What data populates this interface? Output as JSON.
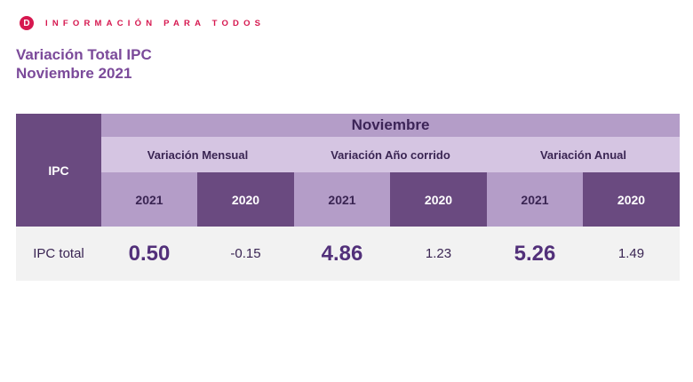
{
  "brand": {
    "logo": "D",
    "text": "INFORMACIÓN PARA TODOS"
  },
  "title": {
    "line1": "Variación Total IPC",
    "line2": "Noviembre 2021"
  },
  "table": {
    "row_header": "IPC",
    "month": "Noviembre",
    "groups": [
      {
        "label": "Variación Mensual",
        "years": [
          "2021",
          "2020"
        ],
        "values": [
          "0.50",
          "-0.15"
        ]
      },
      {
        "label": "Variación Año corrido",
        "years": [
          "2021",
          "2020"
        ],
        "values": [
          "4.86",
          "1.23"
        ]
      },
      {
        "label": "Variación Anual",
        "years": [
          "2021",
          "2020"
        ],
        "values": [
          "5.26",
          "1.49"
        ]
      }
    ],
    "row_label": "IPC total"
  },
  "colors": {
    "brand": "#d6174f",
    "title": "#7b4a9a",
    "dark_purple": "#6a4a80",
    "mid_purple": "#b49dc8",
    "light_purple": "#d5c5e2"
  }
}
